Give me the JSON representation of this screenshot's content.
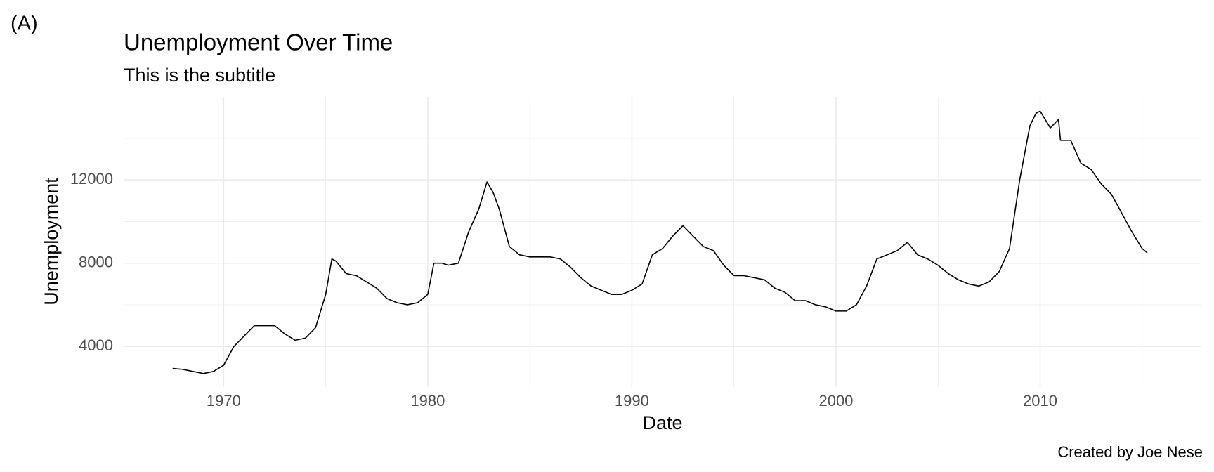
{
  "chart_data": {
    "type": "line",
    "tag": "(A)",
    "title": "Unemployment Over Time",
    "subtitle": "This is the subtitle",
    "xlabel": "Date",
    "ylabel": "Unemployment",
    "caption": "Created by Joe Nese",
    "color": "#000000",
    "grid": true,
    "xlim": [
      1965.1,
      2017.9
    ],
    "ylim": [
      2052,
      15985
    ],
    "xticks": [
      1970,
      1980,
      1990,
      2000,
      2010
    ],
    "x_minor_ticks": [
      1975,
      1985,
      1995,
      2005,
      2015
    ],
    "yticks": [
      4000,
      8000,
      12000
    ],
    "y_minor_ticks": [
      6000,
      10000,
      14000
    ],
    "x": [
      1967.5,
      1968.0,
      1968.5,
      1969.0,
      1969.5,
      1970.0,
      1970.5,
      1971.0,
      1971.5,
      1972.0,
      1972.5,
      1973.0,
      1973.5,
      1974.0,
      1974.5,
      1975.0,
      1975.3,
      1975.5,
      1976.0,
      1976.5,
      1977.0,
      1977.5,
      1978.0,
      1978.5,
      1979.0,
      1979.5,
      1980.0,
      1980.3,
      1980.7,
      1981.0,
      1981.5,
      1982.0,
      1982.5,
      1982.9,
      1983.2,
      1983.5,
      1984.0,
      1984.5,
      1985.0,
      1985.5,
      1986.0,
      1986.5,
      1987.0,
      1987.5,
      1988.0,
      1988.5,
      1989.0,
      1989.5,
      1990.0,
      1990.5,
      1991.0,
      1991.5,
      1992.0,
      1992.5,
      1993.0,
      1993.5,
      1994.0,
      1994.5,
      1995.0,
      1995.5,
      1996.0,
      1996.5,
      1997.0,
      1997.5,
      1998.0,
      1998.5,
      1999.0,
      1999.5,
      2000.0,
      2000.5,
      2001.0,
      2001.5,
      2002.0,
      2002.5,
      2003.0,
      2003.5,
      2004.0,
      2004.5,
      2005.0,
      2005.5,
      2006.0,
      2006.5,
      2007.0,
      2007.5,
      2008.0,
      2008.5,
      2009.0,
      2009.5,
      2009.8,
      2010.0,
      2010.5,
      2010.9,
      2011.0,
      2011.5,
      2012.0,
      2012.5,
      2013.0,
      2013.5,
      2014.0,
      2014.5,
      2015.0,
      2015.25
    ],
    "values": [
      2944,
      2900,
      2800,
      2700,
      2800,
      3100,
      4000,
      4500,
      5000,
      5000,
      5000,
      4600,
      4300,
      4400,
      4900,
      6500,
      8200,
      8100,
      7500,
      7400,
      7100,
      6800,
      6300,
      6100,
      6000,
      6100,
      6500,
      8000,
      8000,
      7900,
      8000,
      9500,
      10600,
      11900,
      11400,
      10600,
      8800,
      8400,
      8300,
      8300,
      8300,
      8200,
      7800,
      7300,
      6900,
      6700,
      6500,
      6500,
      6700,
      7000,
      8400,
      8700,
      9300,
      9800,
      9300,
      8800,
      8600,
      7900,
      7400,
      7400,
      7300,
      7200,
      6800,
      6600,
      6200,
      6200,
      6000,
      5900,
      5700,
      5700,
      6000,
      6900,
      8200,
      8400,
      8600,
      9000,
      8400,
      8200,
      7900,
      7500,
      7200,
      7000,
      6900,
      7100,
      7600,
      8700,
      12000,
      14600,
      15200,
      15300,
      14500,
      14900,
      13900,
      13900,
      12800,
      12500,
      11800,
      11300,
      10400,
      9500,
      8700,
      8500
    ]
  }
}
